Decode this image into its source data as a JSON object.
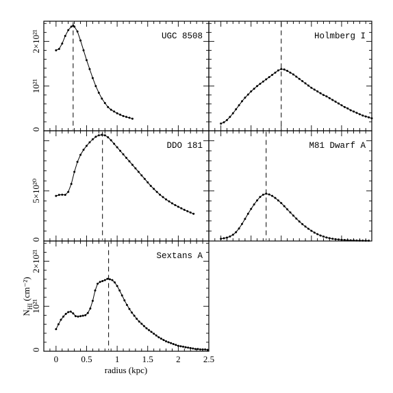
{
  "chart_data": [
    {
      "type": "line",
      "label": "UGC 8508",
      "ytick_labels": [
        "2×10²¹",
        "10²¹",
        "0"
      ],
      "yticks": [
        2,
        1,
        0
      ],
      "ylim": [
        0,
        2.45
      ],
      "xlim": [
        -0.2,
        2.5
      ],
      "peak_radius": 0.28,
      "x": [
        0,
        0.05,
        0.1,
        0.15,
        0.2,
        0.25,
        0.28,
        0.3,
        0.35,
        0.4,
        0.45,
        0.5,
        0.55,
        0.6,
        0.65,
        0.7,
        0.75,
        0.8,
        0.85,
        0.9,
        0.95,
        1.0,
        1.05,
        1.1,
        1.15,
        1.2,
        1.25
      ],
      "y": [
        1.8,
        1.83,
        1.95,
        2.12,
        2.25,
        2.33,
        2.35,
        2.33,
        2.22,
        2.02,
        1.8,
        1.58,
        1.38,
        1.18,
        1.0,
        0.85,
        0.72,
        0.62,
        0.53,
        0.47,
        0.43,
        0.39,
        0.36,
        0.33,
        0.31,
        0.29,
        0.27
      ]
    },
    {
      "type": "line",
      "label": "Holmberg I",
      "yticks": [],
      "ylim": [
        0,
        2.45
      ],
      "xlim": [
        -0.2,
        2.5
      ],
      "peak_radius": 1.0,
      "x": [
        0,
        0.05,
        0.1,
        0.15,
        0.2,
        0.25,
        0.3,
        0.35,
        0.4,
        0.45,
        0.5,
        0.55,
        0.6,
        0.65,
        0.7,
        0.75,
        0.8,
        0.85,
        0.9,
        0.95,
        1.0,
        1.05,
        1.1,
        1.15,
        1.2,
        1.25,
        1.3,
        1.35,
        1.4,
        1.45,
        1.5,
        1.55,
        1.6,
        1.65,
        1.7,
        1.75,
        1.8,
        1.85,
        1.9,
        1.95,
        2.0,
        2.05,
        2.1,
        2.15,
        2.2,
        2.25,
        2.3,
        2.35,
        2.4,
        2.45,
        2.5
      ],
      "y": [
        0.16,
        0.19,
        0.24,
        0.31,
        0.39,
        0.48,
        0.57,
        0.66,
        0.74,
        0.81,
        0.88,
        0.94,
        1.0,
        1.05,
        1.1,
        1.15,
        1.2,
        1.25,
        1.3,
        1.35,
        1.38,
        1.37,
        1.34,
        1.3,
        1.26,
        1.21,
        1.16,
        1.11,
        1.06,
        1.01,
        0.96,
        0.92,
        0.88,
        0.84,
        0.8,
        0.77,
        0.73,
        0.69,
        0.65,
        0.61,
        0.57,
        0.53,
        0.5,
        0.46,
        0.43,
        0.4,
        0.37,
        0.34,
        0.32,
        0.3,
        0.28
      ]
    },
    {
      "type": "line",
      "label": "DDO 181",
      "ytick_labels": [
        "5×10²⁰",
        "0"
      ],
      "yticks": [
        5,
        0
      ],
      "ylim": [
        0,
        11.0
      ],
      "xlim": [
        -0.2,
        2.5
      ],
      "peak_radius": 0.76,
      "x": [
        0,
        0.05,
        0.1,
        0.15,
        0.2,
        0.25,
        0.3,
        0.35,
        0.4,
        0.45,
        0.5,
        0.55,
        0.6,
        0.65,
        0.7,
        0.75,
        0.8,
        0.85,
        0.9,
        0.95,
        1.0,
        1.05,
        1.1,
        1.15,
        1.2,
        1.25,
        1.3,
        1.35,
        1.4,
        1.45,
        1.5,
        1.55,
        1.6,
        1.65,
        1.7,
        1.75,
        1.8,
        1.85,
        1.9,
        1.95,
        2.0,
        2.05,
        2.1,
        2.15,
        2.2,
        2.25
      ],
      "y": [
        4.5,
        4.6,
        4.62,
        4.6,
        4.9,
        5.7,
        6.9,
        7.9,
        8.6,
        9.1,
        9.5,
        9.85,
        10.15,
        10.4,
        10.55,
        10.6,
        10.55,
        10.35,
        10.05,
        9.7,
        9.35,
        9.0,
        8.65,
        8.3,
        7.95,
        7.6,
        7.25,
        6.9,
        6.55,
        6.2,
        5.85,
        5.5,
        5.2,
        4.9,
        4.62,
        4.38,
        4.15,
        3.95,
        3.76,
        3.58,
        3.42,
        3.26,
        3.11,
        2.97,
        2.84,
        2.72
      ]
    },
    {
      "type": "line",
      "label": "M81 Dwarf A",
      "yticks": [],
      "ylim": [
        0,
        11.0
      ],
      "xlim": [
        -0.2,
        2.5
      ],
      "peak_radius": 0.75,
      "x": [
        0,
        0.05,
        0.1,
        0.15,
        0.2,
        0.25,
        0.3,
        0.35,
        0.4,
        0.45,
        0.5,
        0.55,
        0.6,
        0.65,
        0.7,
        0.75,
        0.8,
        0.85,
        0.9,
        0.95,
        1.0,
        1.05,
        1.1,
        1.15,
        1.2,
        1.25,
        1.3,
        1.35,
        1.4,
        1.45,
        1.5,
        1.55,
        1.6,
        1.65,
        1.7,
        1.75,
        1.8,
        1.85,
        1.9,
        1.95,
        2.0,
        2.05,
        2.1,
        2.15,
        2.2,
        2.25,
        2.3,
        2.35,
        2.4,
        2.45
      ],
      "y": [
        0.22,
        0.27,
        0.34,
        0.45,
        0.62,
        0.88,
        1.25,
        1.7,
        2.2,
        2.72,
        3.2,
        3.65,
        4.05,
        4.4,
        4.62,
        4.72,
        4.65,
        4.5,
        4.3,
        4.05,
        3.78,
        3.48,
        3.16,
        2.85,
        2.54,
        2.24,
        1.95,
        1.68,
        1.44,
        1.22,
        1.02,
        0.84,
        0.68,
        0.55,
        0.44,
        0.35,
        0.28,
        0.22,
        0.18,
        0.15,
        0.12,
        0.1,
        0.08,
        0.07,
        0.06,
        0.05,
        0.04,
        0.04,
        0.03,
        0.03
      ]
    },
    {
      "type": "line",
      "label": "Sextans A",
      "ytick_labels": [
        "2×10²¹",
        "10²¹",
        "0"
      ],
      "yticks": [
        2,
        1,
        0
      ],
      "ylim": [
        0,
        2.45
      ],
      "xlim": [
        -0.2,
        2.5
      ],
      "xticks": [
        0,
        0.5,
        1,
        1.5,
        2,
        2.5
      ],
      "xtick_labels": [
        "0",
        "0.5",
        "1",
        "1.5",
        "2",
        "2.5"
      ],
      "peak_radius": 0.86,
      "x": [
        0,
        0.04,
        0.08,
        0.12,
        0.16,
        0.2,
        0.24,
        0.28,
        0.32,
        0.36,
        0.4,
        0.44,
        0.48,
        0.52,
        0.56,
        0.6,
        0.64,
        0.68,
        0.72,
        0.76,
        0.8,
        0.84,
        0.88,
        0.92,
        0.96,
        1.0,
        1.04,
        1.08,
        1.12,
        1.16,
        1.2,
        1.24,
        1.28,
        1.32,
        1.36,
        1.4,
        1.44,
        1.48,
        1.52,
        1.56,
        1.6,
        1.64,
        1.68,
        1.72,
        1.76,
        1.8,
        1.84,
        1.88,
        1.92,
        1.96,
        2.0,
        2.04,
        2.08,
        2.12,
        2.16,
        2.2,
        2.24,
        2.28,
        2.32,
        2.36,
        2.4,
        2.44,
        2.48
      ],
      "y": [
        0.49,
        0.6,
        0.7,
        0.77,
        0.83,
        0.87,
        0.88,
        0.84,
        0.78,
        0.77,
        0.78,
        0.79,
        0.8,
        0.85,
        0.95,
        1.12,
        1.35,
        1.5,
        1.54,
        1.56,
        1.58,
        1.61,
        1.6,
        1.58,
        1.53,
        1.45,
        1.35,
        1.24,
        1.13,
        1.03,
        0.94,
        0.86,
        0.79,
        0.72,
        0.66,
        0.61,
        0.56,
        0.51,
        0.47,
        0.43,
        0.39,
        0.35,
        0.31,
        0.28,
        0.25,
        0.22,
        0.2,
        0.18,
        0.16,
        0.14,
        0.12,
        0.11,
        0.1,
        0.09,
        0.08,
        0.07,
        0.06,
        0.05,
        0.05,
        0.04,
        0.04,
        0.04,
        0.03
      ]
    }
  ],
  "axes": {
    "xlabel": "radius (kpc)",
    "ylabel": "N",
    "ylabel_sub": "HI",
    "ylabel_unit": "(cm⁻²)"
  }
}
